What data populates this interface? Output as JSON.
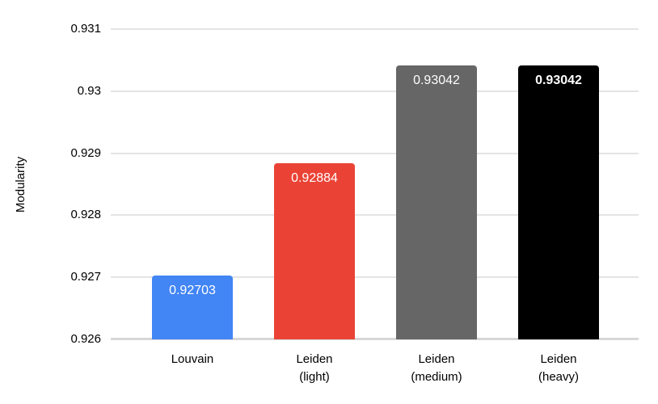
{
  "chart_data": {
    "type": "bar",
    "title": "",
    "xlabel": "",
    "ylabel": "Modularity",
    "ylim": [
      0.926,
      0.931
    ],
    "grid": true,
    "legend": "none",
    "yticks": [
      "0.926",
      "0.927",
      "0.928",
      "0.929",
      "0.93",
      "0.931"
    ],
    "categories": [
      "Louvain",
      "Leiden\n(light)",
      "Leiden\n(medium)",
      "Leiden\n(heavy)"
    ],
    "values": [
      0.92703,
      0.92884,
      0.93042,
      0.93042
    ],
    "bars": [
      {
        "category": "Louvain",
        "value": 0.92703,
        "value_label": "0.92703",
        "color": "#4285F4",
        "label_bold": false
      },
      {
        "category": "Leiden (light)",
        "value": 0.92884,
        "value_label": "0.92884",
        "color": "#EA4335",
        "label_bold": false
      },
      {
        "category": "Leiden (medium)",
        "value": 0.93042,
        "value_label": "0.93042",
        "color": "#666666",
        "label_bold": false
      },
      {
        "category": "Leiden (heavy)",
        "value": 0.93042,
        "value_label": "0.93042",
        "color": "#000000",
        "label_bold": true
      }
    ],
    "colors": {
      "background": "#ffffff",
      "gridline": "#e4e4e4",
      "baseline": "#d7d7d7",
      "axis_text": "#000000",
      "value_label_text": "#ffffff"
    }
  }
}
